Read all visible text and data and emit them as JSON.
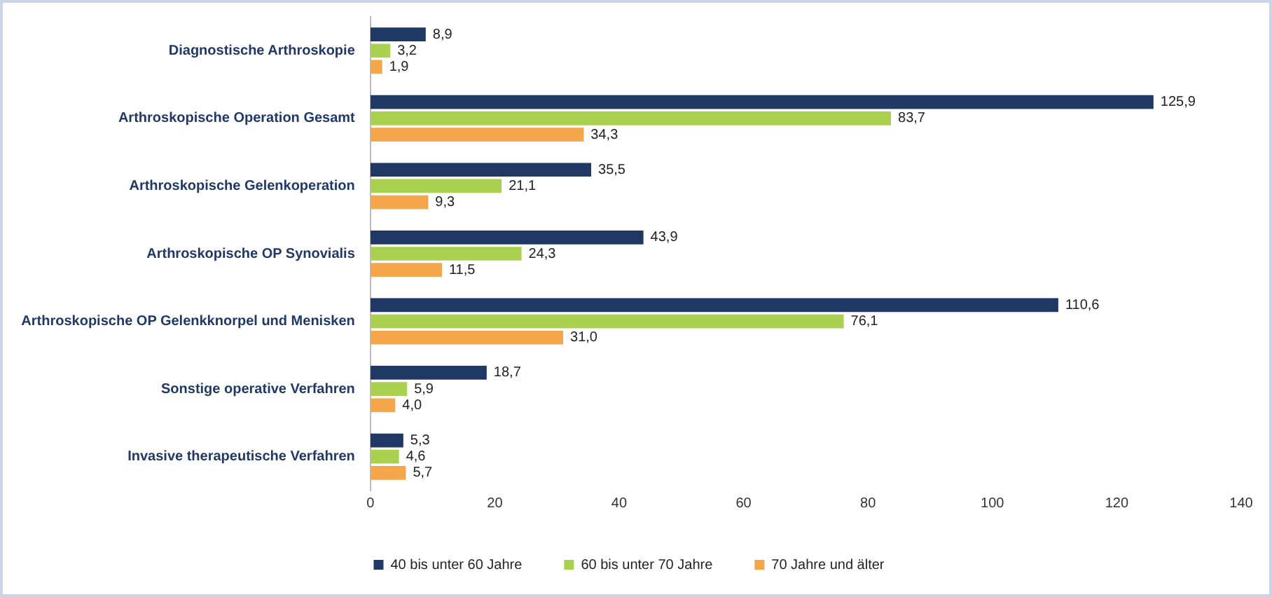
{
  "chart_data": {
    "type": "bar",
    "orientation": "horizontal",
    "categories": [
      "Diagnostische Arthroskopie",
      "Arthroskopische Operation Gesamt",
      "Arthroskopische Gelenkoperation",
      "Arthroskopische OP Synovialis",
      "Arthroskopische OP Gelenkknorpel und Menisken",
      "Sonstige operative Verfahren",
      "Invasive therapeutische Verfahren"
    ],
    "series": [
      {
        "name": "40 bis unter 60 Jahre",
        "color": "#1f3864",
        "values": [
          8.9,
          125.9,
          35.5,
          43.9,
          110.6,
          18.7,
          5.3
        ],
        "value_labels": [
          "8,9",
          "125,9",
          "35,5",
          "43,9",
          "110,6",
          "18,7",
          "5,3"
        ]
      },
      {
        "name": "60 bis unter 70 Jahre",
        "color": "#a9d04f",
        "values": [
          3.2,
          83.7,
          21.1,
          24.3,
          76.1,
          5.9,
          4.6
        ],
        "value_labels": [
          "3,2",
          "83,7",
          "21,1",
          "24,3",
          "76,1",
          "5,9",
          "4,6"
        ]
      },
      {
        "name": "70 Jahre und älter",
        "color": "#f5a54a",
        "values": [
          1.9,
          34.3,
          9.3,
          11.5,
          31.0,
          4.0,
          5.7
        ],
        "value_labels": [
          "1,9",
          "34,3",
          "9,3",
          "11,5",
          "31,0",
          "4,0",
          "5,7"
        ]
      }
    ],
    "xlim": [
      0,
      140
    ],
    "xticks": [
      0,
      20,
      40,
      60,
      80,
      100,
      120,
      140
    ],
    "grid": false,
    "legend": "bottom"
  }
}
